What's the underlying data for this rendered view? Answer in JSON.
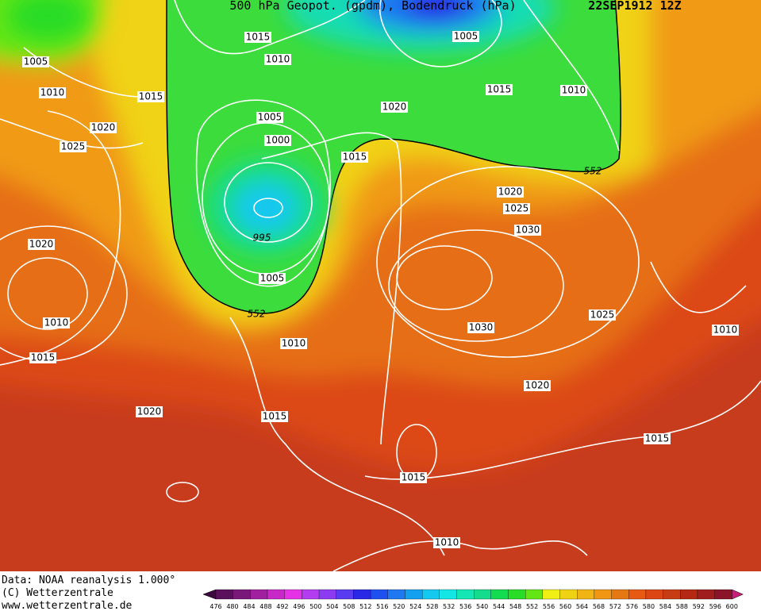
{
  "header": {
    "title": "500 hPa Geopot. (gpdm), Bodendruck (hPa)",
    "date": "22SEP1912 12Z"
  },
  "contour_labels": [
    "1015",
    "1005",
    "1010",
    "1010",
    "1015",
    "1020",
    "1005",
    "1025",
    "1000",
    "1020",
    "1015",
    "1010",
    "1005",
    "1015",
    "552",
    "1020",
    "1025",
    "1030",
    "995",
    "1020",
    "1005",
    "552",
    "1025",
    "1010",
    "1030",
    "1010",
    "1010",
    "1015",
    "1020",
    "1020",
    "1015",
    "1015",
    "1015",
    "1010"
  ],
  "footer": {
    "data": "Data: NOAA reanalysis 1.000°",
    "copyright": "(C) Wetterzentrale",
    "url": "www.wetterzentrale.de"
  },
  "colorbar": {
    "levels": [
      476,
      480,
      484,
      488,
      492,
      496,
      500,
      504,
      508,
      512,
      516,
      520,
      524,
      528,
      532,
      536,
      540,
      544,
      548,
      552,
      556,
      560,
      564,
      568,
      572,
      576,
      580,
      584,
      588,
      592,
      596,
      600
    ],
    "colors": [
      "#3c0a3c",
      "#5a105a",
      "#7a187a",
      "#a020a0",
      "#c828c8",
      "#e632e6",
      "#b43cf0",
      "#8c3cf0",
      "#5a3cf0",
      "#2828e6",
      "#1e50f0",
      "#1e78f0",
      "#14a0f0",
      "#14c8f0",
      "#14e6e6",
      "#14e6b4",
      "#14dc8c",
      "#14dc50",
      "#28dc28",
      "#64e614",
      "#f0f014",
      "#f0d214",
      "#f0b414",
      "#f09614",
      "#e67814",
      "#e65a14",
      "#dc4614",
      "#c83c14",
      "#b42814",
      "#a01e1e",
      "#8c1428",
      "#c81e78"
    ]
  }
}
